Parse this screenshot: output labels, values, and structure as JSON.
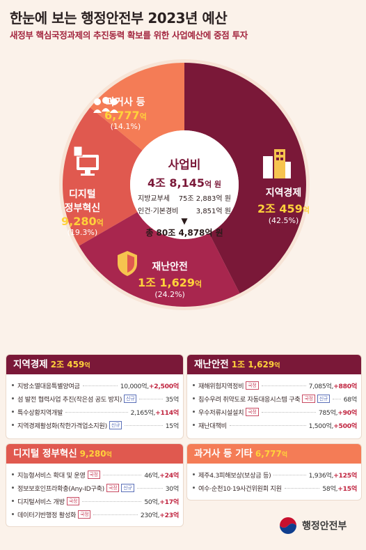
{
  "title": "한눈에 보는 행정안전부 2023년 예산",
  "subtitle": "새정부 핵심국정과제의 추진동력 확보를 위한 사업예산에 중점 투자",
  "chart_data": {
    "type": "pie",
    "title": "사업비",
    "total_label": "4조 8,145억 원",
    "categories": [
      "지역경제",
      "재난안전",
      "디지털 정부혁신",
      "과거사 등"
    ],
    "values": [
      20459,
      11629,
      9280,
      6777
    ],
    "percents": [
      "(42.5%)",
      "(24.2%)",
      "(19.3%)",
      "(14.1%)"
    ],
    "amount_labels": [
      "2조 459억",
      "1조 1,629억",
      "9,280억",
      "6,777억"
    ],
    "colors": [
      "#7a1838",
      "#a8264e",
      "#e0594f",
      "#f47c56"
    ]
  },
  "center": {
    "title": "사업비",
    "amount_main": "4조 8,145",
    "amount_unit": "억 원",
    "row1_label": "지방교부세",
    "row1_value": "75조 2,883억 원",
    "row2_label": "인건·기본경비",
    "row2_value": "3,851억 원",
    "total": "총 80조 4,878억 원"
  },
  "slices": {
    "regional": {
      "name": "지역경제",
      "amount": "2조 459",
      "unit": "억",
      "pct": "(42.5%)"
    },
    "safety": {
      "name": "재난안전",
      "amount": "1조 1,629",
      "unit": "억",
      "pct": "(24.2%)"
    },
    "digital": {
      "name1": "디지털",
      "name2": "정부혁신",
      "amount": "9,280",
      "unit": "억",
      "pct": "(19.3%)"
    },
    "past": {
      "name": "과거사 등",
      "amount": "6,777",
      "unit": "억",
      "pct": "(14.1%)"
    }
  },
  "boxes": {
    "regional": {
      "title": "지역경제",
      "sum": "2조 459",
      "sum_unit": "억",
      "color": "#7a1838",
      "items": [
        {
          "label": "지방소멸대응특별양여금",
          "tag": "",
          "value": "10,000억,",
          "change": "+2,500억"
        },
        {
          "label": "섬 발전 협력사업 추진(작은섬 공도 방지)",
          "tag": "신규",
          "value": "35억",
          "change": ""
        },
        {
          "label": "특수상황지역개발",
          "tag": "",
          "value": "2,165억,",
          "change": "+114억"
        },
        {
          "label": "지역경제활성화(착한가격업소지원)",
          "tag": "신규",
          "value": "15억",
          "change": ""
        }
      ]
    },
    "safety": {
      "title": "재난안전",
      "sum": "1조 1,629",
      "sum_unit": "억",
      "color": "#7a1838",
      "items": [
        {
          "label": "재해위험지역정비",
          "tag": "국정",
          "value": "7,085억,",
          "change": "+880억"
        },
        {
          "label": "침수우려 취약도로 자동대응시스템 구축",
          "tag": "국정",
          "tag2": "신규",
          "value": "68억",
          "change": ""
        },
        {
          "label": "우수저류시설설치",
          "tag": "국정",
          "value": "785억,",
          "change": "+90억"
        },
        {
          "label": "재난대책비",
          "tag": "",
          "value": "1,500억,",
          "change": "+500억"
        }
      ]
    },
    "digital": {
      "title": "디지털 정부혁신",
      "sum": "9,280",
      "sum_unit": "억",
      "color": "#e0594f",
      "items": [
        {
          "label": "지능형서비스 확대 및 운영",
          "tag": "국정",
          "value": "46억,",
          "change": "+24억"
        },
        {
          "label": "정보보호인프라확충(Any-ID구축)",
          "tag": "국정",
          "tag2": "신규",
          "value": "30억",
          "change": ""
        },
        {
          "label": "디지털서비스 개방",
          "tag": "국정",
          "value": "50억,",
          "change": "+17억"
        },
        {
          "label": "데이터기반행정 활성화",
          "tag": "국정",
          "value": "230억,",
          "change": "+23억"
        }
      ]
    },
    "past": {
      "title": "과거사 등 기타",
      "sum": "6,777",
      "sum_unit": "억",
      "color": "#f47c56",
      "items": [
        {
          "label": "제주4.3피해보상(보상금 등)",
          "tag": "",
          "value": "1,936억,",
          "change": "+125억"
        },
        {
          "label": "여수·순천10·19사건위원회 지원",
          "tag": "",
          "value": "58억,",
          "change": "+15억"
        }
      ]
    }
  },
  "logo_text": "행정안전부",
  "icons": [
    "people-icon",
    "computer-icon",
    "building-icon",
    "shield-icon",
    "gov-emblem-icon"
  ]
}
